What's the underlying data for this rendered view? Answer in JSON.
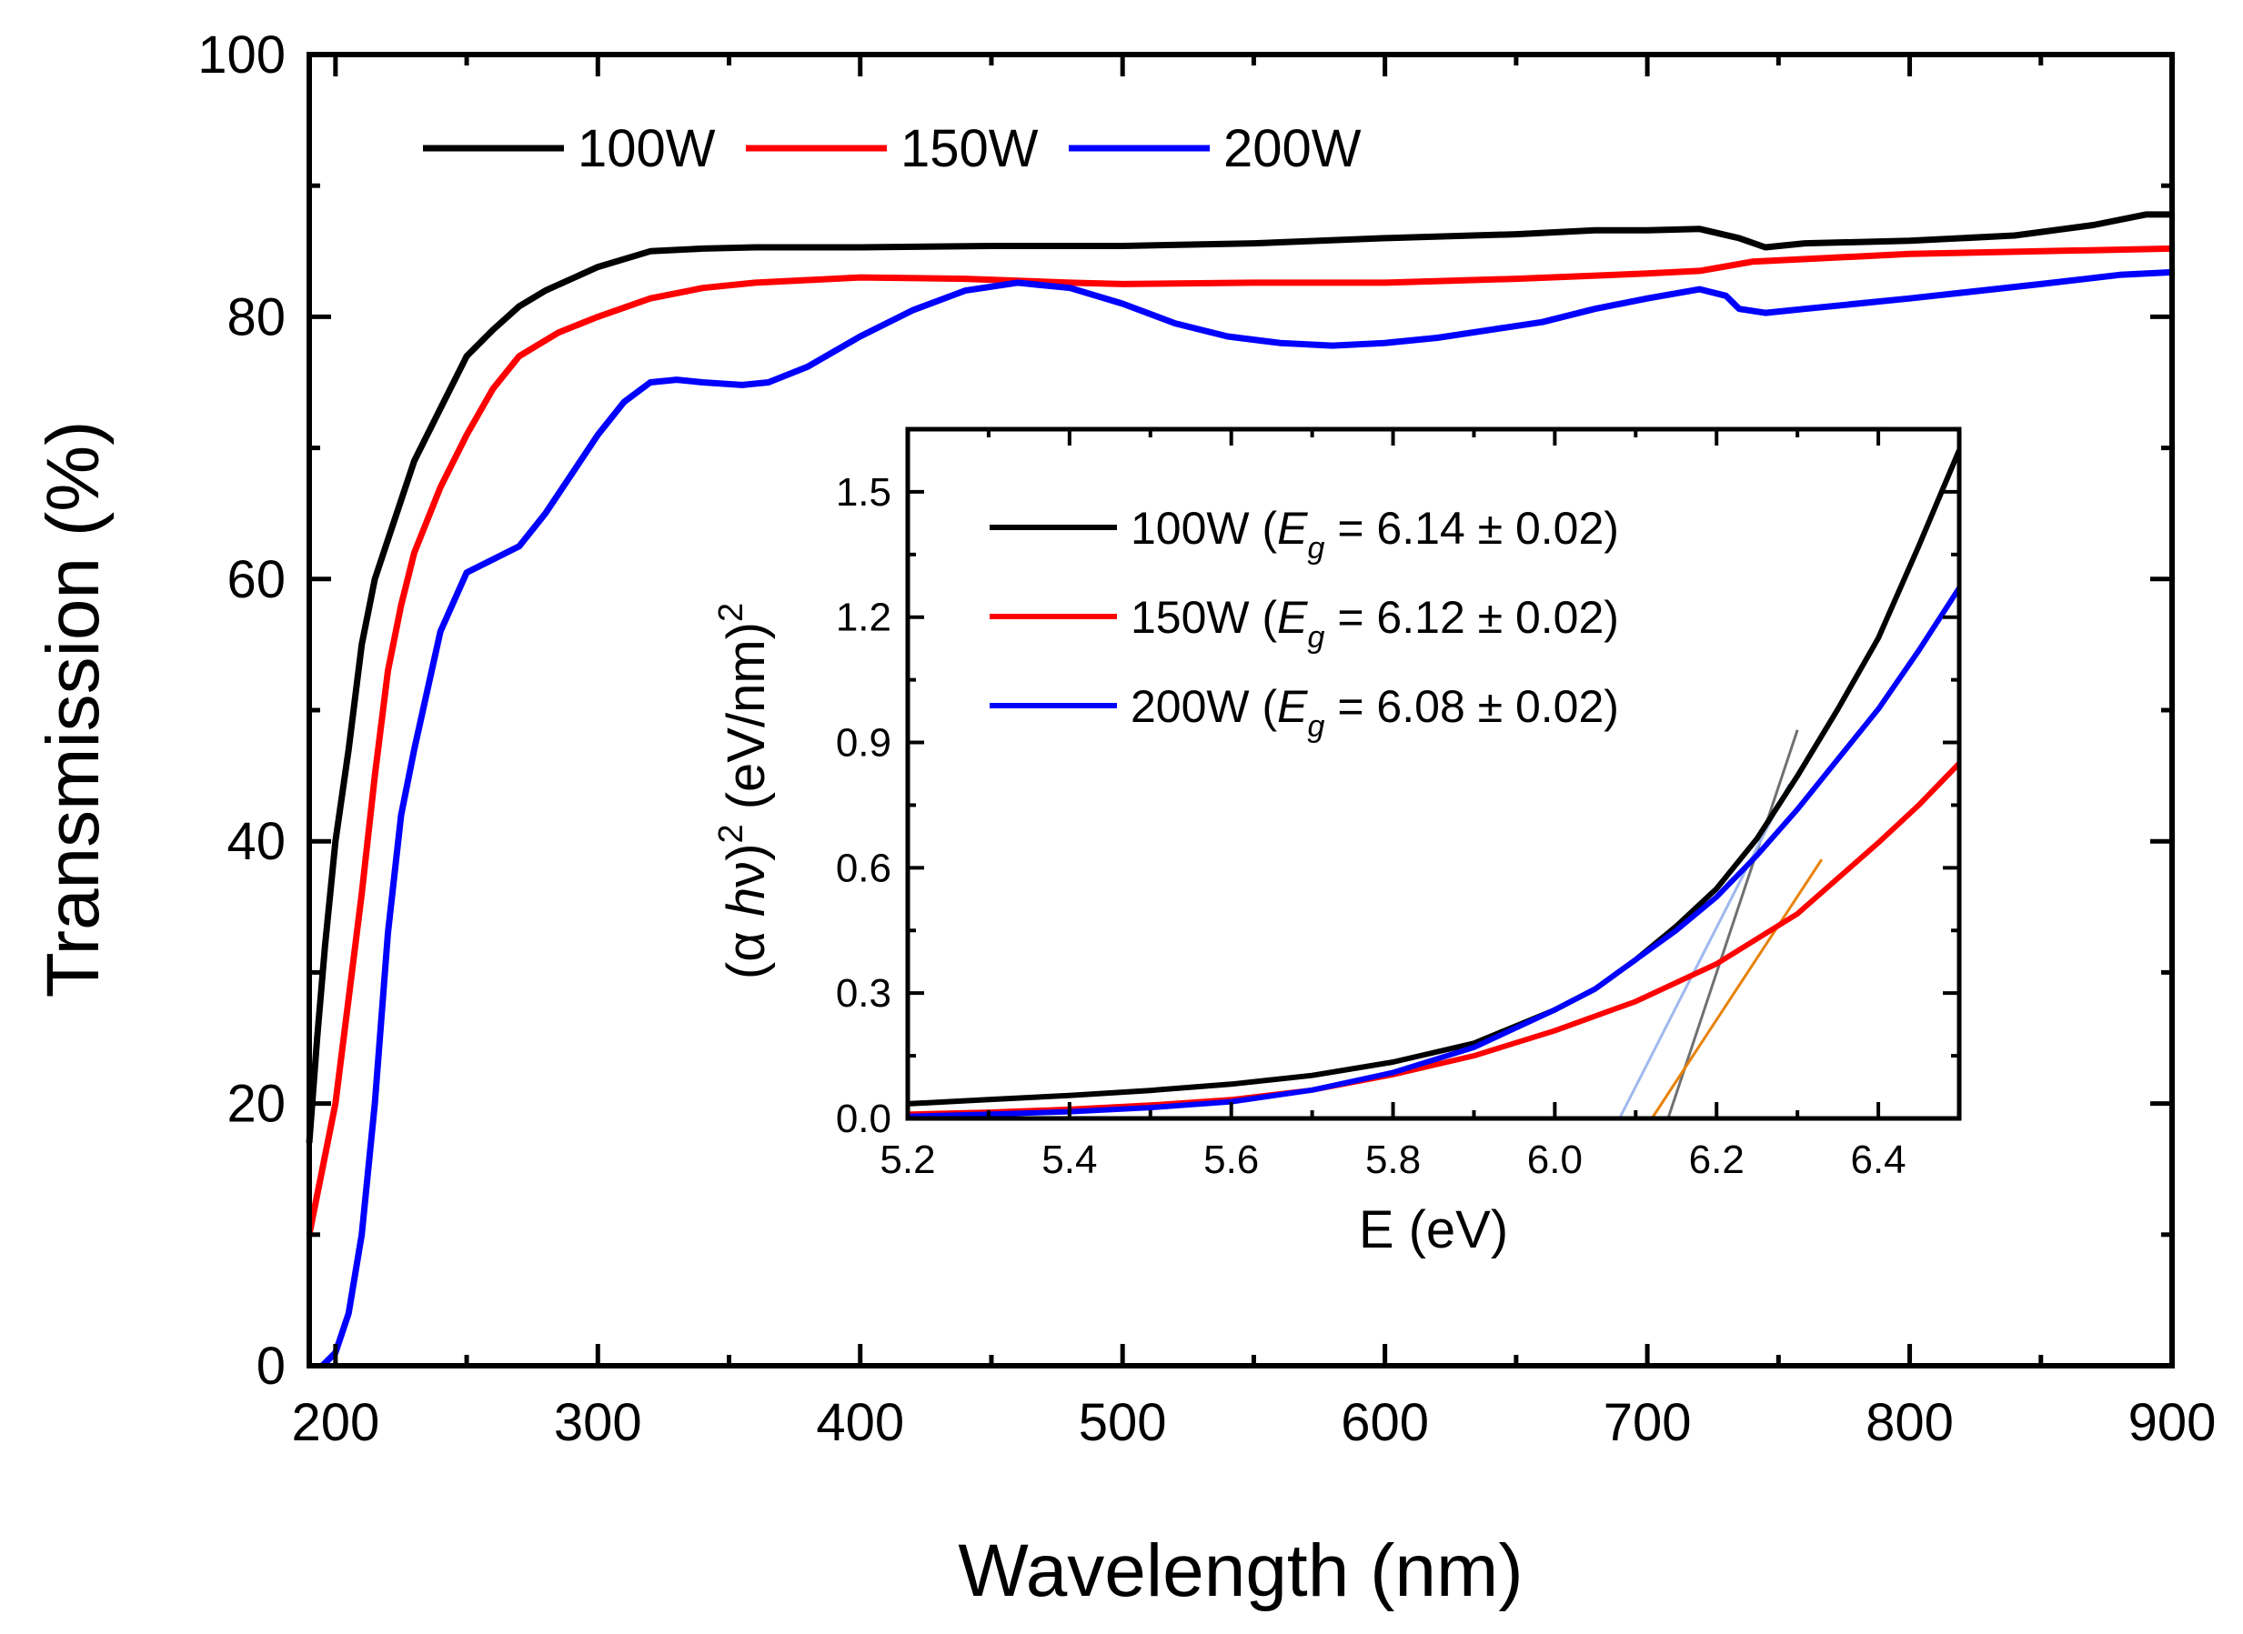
{
  "chart_data": [
    {
      "type": "line",
      "name": "main-transmission-chart",
      "title": "",
      "xlabel": "Wavelength (nm)",
      "ylabel": "Transmission (%)",
      "xlim": [
        190,
        900
      ],
      "ylim": [
        0,
        100
      ],
      "x_ticks": [
        200,
        300,
        400,
        500,
        600,
        700,
        800,
        900
      ],
      "y_ticks": [
        0,
        20,
        40,
        60,
        80,
        100
      ],
      "legend_position": "top-left",
      "series": [
        {
          "name": "100W",
          "color": "#000000",
          "points": [
            [
              190,
              17
            ],
            [
              193,
              25
            ],
            [
              196,
              32
            ],
            [
              200,
              40
            ],
            [
              205,
              47
            ],
            [
              210,
              55
            ],
            [
              215,
              60
            ],
            [
              220,
              63
            ],
            [
              230,
              69
            ],
            [
              240,
              73
            ],
            [
              250,
              77
            ],
            [
              260,
              79
            ],
            [
              270,
              80.8
            ],
            [
              280,
              82
            ],
            [
              300,
              83.8
            ],
            [
              320,
              85
            ],
            [
              340,
              85.2
            ],
            [
              360,
              85.3
            ],
            [
              400,
              85.3
            ],
            [
              450,
              85.4
            ],
            [
              500,
              85.4
            ],
            [
              550,
              85.6
            ],
            [
              600,
              86
            ],
            [
              650,
              86.3
            ],
            [
              680,
              86.6
            ],
            [
              700,
              86.6
            ],
            [
              720,
              86.7
            ],
            [
              735,
              86
            ],
            [
              745,
              85.3
            ],
            [
              760,
              85.6
            ],
            [
              800,
              85.8
            ],
            [
              840,
              86.2
            ],
            [
              870,
              87
            ],
            [
              890,
              87.8
            ],
            [
              900,
              87.8
            ]
          ]
        },
        {
          "name": "150W",
          "color": "#ff0000",
          "points": [
            [
              190,
              10
            ],
            [
              195,
              15
            ],
            [
              200,
              20
            ],
            [
              205,
              28
            ],
            [
              210,
              36
            ],
            [
              215,
              45
            ],
            [
              220,
              53
            ],
            [
              225,
              58
            ],
            [
              230,
              62
            ],
            [
              240,
              67
            ],
            [
              250,
              71
            ],
            [
              260,
              74.5
            ],
            [
              270,
              77
            ],
            [
              285,
              78.8
            ],
            [
              300,
              80
            ],
            [
              320,
              81.4
            ],
            [
              340,
              82.2
            ],
            [
              360,
              82.6
            ],
            [
              380,
              82.8
            ],
            [
              400,
              83
            ],
            [
              440,
              82.9
            ],
            [
              480,
              82.6
            ],
            [
              500,
              82.5
            ],
            [
              550,
              82.6
            ],
            [
              600,
              82.6
            ],
            [
              650,
              82.9
            ],
            [
              700,
              83.3
            ],
            [
              720,
              83.5
            ],
            [
              740,
              84.2
            ],
            [
              780,
              84.6
            ],
            [
              800,
              84.8
            ],
            [
              850,
              85
            ],
            [
              900,
              85.2
            ]
          ]
        },
        {
          "name": "200W",
          "color": "#0000ff",
          "points": [
            [
              195,
              0
            ],
            [
              200,
              1
            ],
            [
              205,
              4
            ],
            [
              210,
              10
            ],
            [
              215,
              20
            ],
            [
              220,
              33
            ],
            [
              225,
              42
            ],
            [
              230,
              47
            ],
            [
              240,
              56
            ],
            [
              250,
              60.5
            ],
            [
              260,
              61.5
            ],
            [
              270,
              62.5
            ],
            [
              280,
              65
            ],
            [
              290,
              68
            ],
            [
              300,
              71
            ],
            [
              310,
              73.5
            ],
            [
              320,
              75
            ],
            [
              330,
              75.2
            ],
            [
              340,
              75
            ],
            [
              355,
              74.8
            ],
            [
              365,
              75
            ],
            [
              380,
              76.2
            ],
            [
              400,
              78.5
            ],
            [
              420,
              80.5
            ],
            [
              440,
              82
            ],
            [
              460,
              82.6
            ],
            [
              480,
              82.2
            ],
            [
              500,
              81
            ],
            [
              520,
              79.5
            ],
            [
              540,
              78.5
            ],
            [
              560,
              78
            ],
            [
              580,
              77.8
            ],
            [
              600,
              78
            ],
            [
              620,
              78.4
            ],
            [
              640,
              79
            ],
            [
              660,
              79.6
            ],
            [
              680,
              80.6
            ],
            [
              700,
              81.4
            ],
            [
              720,
              82.1
            ],
            [
              730,
              81.6
            ],
            [
              735,
              80.6
            ],
            [
              745,
              80.3
            ],
            [
              760,
              80.6
            ],
            [
              800,
              81.4
            ],
            [
              850,
              82.5
            ],
            [
              880,
              83.2
            ],
            [
              900,
              83.4
            ]
          ]
        }
      ]
    },
    {
      "type": "line",
      "name": "inset-tauc-chart",
      "title": "",
      "xlabel": "E (eV)",
      "ylabel": "(α hν)² (eV/nm)²",
      "ylabel_parts": {
        "open": "(",
        "alpha": "α",
        "h": "h",
        "nu": "ν",
        "close": ")",
        "sup1": "2",
        "units": " (eV/nm)",
        "sup2": "2"
      },
      "xlim": [
        5.2,
        6.5
      ],
      "ylim": [
        0,
        1.65
      ],
      "x_ticks": [
        "5.2",
        "5.4",
        "5.6",
        "5.8",
        "6.0",
        "6.2",
        "6.4"
      ],
      "y_ticks": [
        "0.0",
        "0.3",
        "0.6",
        "0.9",
        "1.2",
        "1.5"
      ],
      "legend_position": "top-left",
      "series": [
        {
          "name": "100W",
          "legend_label": {
            "prefix": "100W (",
            "symbol": "E",
            "subscript": "g",
            "suffix": " = 6.14 ± 0.02)"
          },
          "color": "#000000",
          "points": [
            [
              5.2,
              0.035
            ],
            [
              5.3,
              0.045
            ],
            [
              5.4,
              0.055
            ],
            [
              5.5,
              0.067
            ],
            [
              5.6,
              0.082
            ],
            [
              5.7,
              0.103
            ],
            [
              5.8,
              0.135
            ],
            [
              5.9,
              0.18
            ],
            [
              6.0,
              0.26
            ],
            [
              6.05,
              0.31
            ],
            [
              6.1,
              0.38
            ],
            [
              6.15,
              0.46
            ],
            [
              6.2,
              0.55
            ],
            [
              6.25,
              0.67
            ],
            [
              6.3,
              0.82
            ],
            [
              6.35,
              0.98
            ],
            [
              6.4,
              1.15
            ],
            [
              6.45,
              1.37
            ],
            [
              6.5,
              1.6
            ]
          ]
        },
        {
          "name": "150W",
          "legend_label": {
            "prefix": "150W (",
            "symbol": "E",
            "subscript": "g",
            "suffix": " = 6.12 ± 0.02)"
          },
          "color": "#ff0000",
          "points": [
            [
              5.2,
              0.01
            ],
            [
              5.3,
              0.015
            ],
            [
              5.4,
              0.022
            ],
            [
              5.5,
              0.032
            ],
            [
              5.6,
              0.045
            ],
            [
              5.7,
              0.068
            ],
            [
              5.8,
              0.105
            ],
            [
              5.9,
              0.15
            ],
            [
              6.0,
              0.21
            ],
            [
              6.1,
              0.28
            ],
            [
              6.2,
              0.37
            ],
            [
              6.3,
              0.49
            ],
            [
              6.4,
              0.66
            ],
            [
              6.45,
              0.75
            ],
            [
              6.5,
              0.85
            ]
          ]
        },
        {
          "name": "200W",
          "legend_label": {
            "prefix": "200W (",
            "symbol": "E",
            "subscript": "g",
            "suffix": " = 6.08 ± 0.02)"
          },
          "color": "#0000ff",
          "points": [
            [
              5.2,
              0.005
            ],
            [
              5.3,
              0.01
            ],
            [
              5.4,
              0.016
            ],
            [
              5.5,
              0.026
            ],
            [
              5.6,
              0.04
            ],
            [
              5.7,
              0.068
            ],
            [
              5.8,
              0.11
            ],
            [
              5.9,
              0.17
            ],
            [
              6.0,
              0.26
            ],
            [
              6.05,
              0.31
            ],
            [
              6.1,
              0.38
            ],
            [
              6.15,
              0.45
            ],
            [
              6.2,
              0.53
            ],
            [
              6.25,
              0.63
            ],
            [
              6.3,
              0.74
            ],
            [
              6.35,
              0.86
            ],
            [
              6.4,
              0.98
            ],
            [
              6.45,
              1.12
            ],
            [
              6.5,
              1.27
            ]
          ]
        }
      ],
      "fit_lines": [
        {
          "name": "100W-fit",
          "color": "#707070",
          "points": [
            [
              6.14,
              0.0
            ],
            [
              6.3,
              0.93
            ]
          ]
        },
        {
          "name": "150W-fit",
          "color": "#e8820a",
          "points": [
            [
              6.12,
              0.0
            ],
            [
              6.33,
              0.62
            ]
          ]
        },
        {
          "name": "200W-fit",
          "color": "#9fb8ee",
          "points": [
            [
              6.08,
              0.0
            ],
            [
              6.29,
              0.8
            ]
          ]
        }
      ]
    }
  ]
}
